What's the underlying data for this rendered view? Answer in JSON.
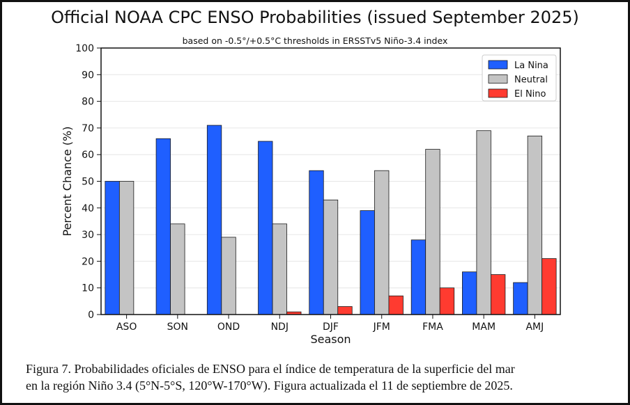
{
  "chart_data": {
    "type": "bar",
    "title": "Official NOAA CPC ENSO Probabilities (issued September 2025)",
    "subtitle": "based on -0.5°/+0.5°C thresholds in ERSSTv5 Niño-3.4 index",
    "xlabel": "Season",
    "ylabel": "Percent Chance (%)",
    "ylim": [
      0,
      100
    ],
    "yticks": [
      0,
      10,
      20,
      30,
      40,
      50,
      60,
      70,
      80,
      90,
      100
    ],
    "grid": true,
    "legend_position": "top-right",
    "categories": [
      "ASO",
      "SON",
      "OND",
      "NDJ",
      "DJF",
      "JFM",
      "FMA",
      "MAM",
      "AMJ"
    ],
    "series": [
      {
        "name": "La Nina",
        "color": "#1f5fff",
        "values": [
          50,
          66,
          71,
          65,
          54,
          39,
          28,
          16,
          12
        ]
      },
      {
        "name": "Neutral",
        "color": "#c4c4c4",
        "values": [
          50,
          34,
          29,
          34,
          43,
          54,
          62,
          69,
          67
        ]
      },
      {
        "name": "El Nino",
        "color": "#ff3b30",
        "values": [
          0,
          0,
          0,
          1,
          3,
          7,
          10,
          15,
          21
        ]
      }
    ]
  },
  "caption": {
    "line1": "Figura 7. Probabilidades oficiales de ENSO para el índice de temperatura de la superficie del mar",
    "line2": "en la región Niño 3.4 (5°N-5°S, 120°W-170°W). Figura actualizada el 11 de septiembre de 2025."
  }
}
